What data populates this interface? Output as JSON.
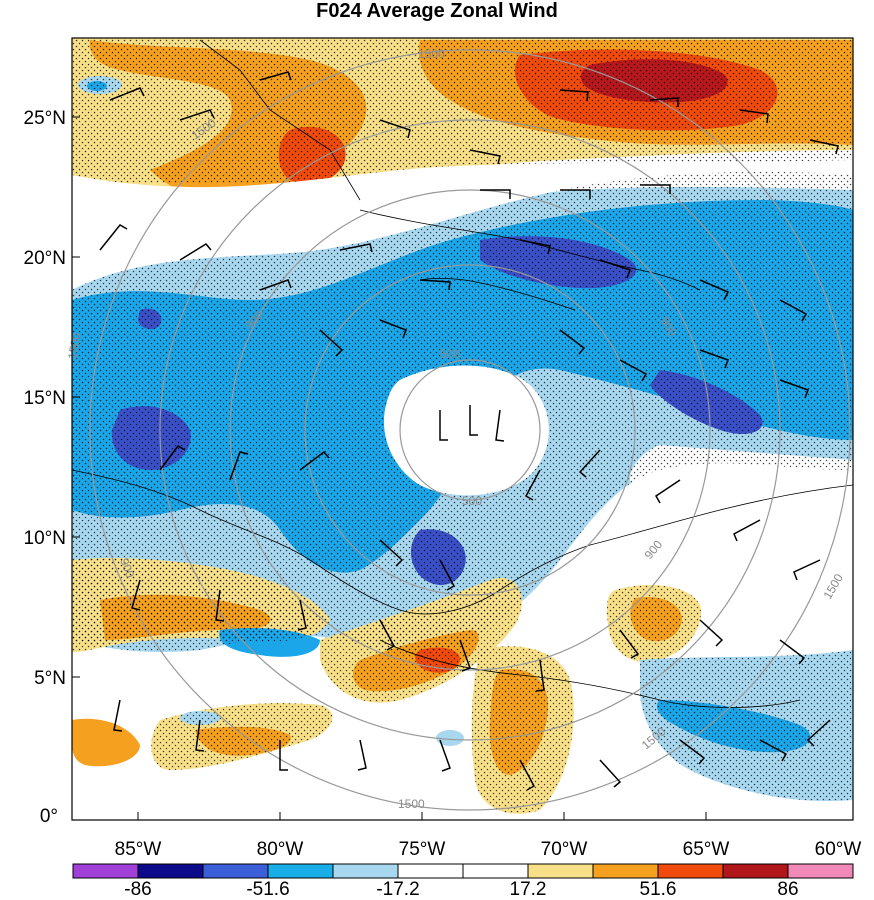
{
  "title": "F024 Average Zonal Wind",
  "map": {
    "lat_labels": [
      "25°N",
      "20°N",
      "15°N",
      "10°N",
      "5°N",
      "0°"
    ],
    "lon_labels": [
      "85°W",
      "80°W",
      "75°W",
      "70°W",
      "65°W",
      "60°W"
    ],
    "range_ring_labels": [
      "1500",
      "1500",
      "1500",
      "1500",
      "900",
      "900",
      "900",
      "900",
      "500",
      "500",
      "1500",
      "1500"
    ]
  },
  "colorbar": {
    "colors": [
      "#a040d8",
      "#0b0b8c",
      "#3a5fd8",
      "#1aaee8",
      "#a8d8f0",
      "#ffffff",
      "#ffffff",
      "#f8e088",
      "#f5a01e",
      "#f04a0c",
      "#b0161a",
      "#f088b8"
    ],
    "tick_labels": [
      "-86",
      "-51.6",
      "-17.2",
      "17.2",
      "51.6",
      "86"
    ]
  },
  "legend_colors": {
    "strong_neg": "#3a50c8",
    "mid_neg": "#1aa6e8",
    "weak_neg": "#a8d8f0",
    "weak_pos": "#f8e088",
    "mid_pos": "#f5a01e",
    "strong_pos": "#f04a0c",
    "very_strong_pos": "#b8181c"
  }
}
